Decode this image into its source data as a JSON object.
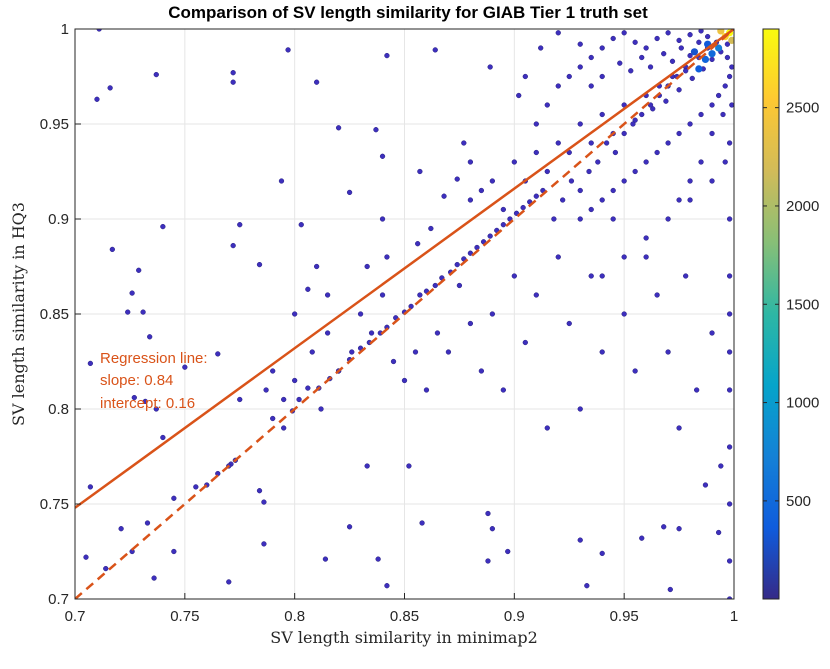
{
  "chart_data": {
    "type": "scatter",
    "title": "Comparison of SV length similarity for GIAB Tier 1 truth set",
    "xlabel": "SV length similarity in minimap2",
    "ylabel": "SV length similarity in HQ3",
    "xlim": [
      0.7,
      1.0
    ],
    "ylim": [
      0.7,
      1.0
    ],
    "x_ticks": [
      0.7,
      0.75,
      0.8,
      0.85,
      0.9,
      0.95,
      1.0
    ],
    "x_tick_labels": [
      "0.7",
      "0.75",
      "0.8",
      "0.85",
      "0.9",
      "0.95",
      "1"
    ],
    "y_ticks": [
      0.7,
      0.75,
      0.8,
      0.85,
      0.9,
      0.95,
      1.0
    ],
    "y_tick_labels": [
      "0.7",
      "0.75",
      "0.8",
      "0.85",
      "0.9",
      "0.95",
      "1"
    ],
    "grid": true,
    "colorbar": {
      "range": [
        1,
        2900
      ],
      "ticks": [
        500,
        1000,
        1500,
        2000,
        2500
      ],
      "tick_labels": [
        "500",
        "1000",
        "1500",
        "2000",
        "2500"
      ],
      "colormap": "parula",
      "colors": [
        "#352a87",
        "#0f5cdd",
        "#1481d6",
        "#06a4ca",
        "#2eb7a4",
        "#87bf77",
        "#d1bb59",
        "#fec832",
        "#f9fb0e"
      ]
    },
    "regression": {
      "slope": 0.84,
      "intercept": 0.16,
      "color": "#d95319",
      "labels": [
        "Regression line:",
        "slope: 0.84",
        "intercept: 0.16"
      ]
    },
    "identity_line": {
      "slope": 1,
      "intercept": 0,
      "style": "dashed",
      "color": "#d95319"
    },
    "point_color": "#3d2fbd",
    "points": [
      [
        0.711,
        1.0
      ],
      [
        0.71,
        0.963
      ],
      [
        0.716,
        0.969
      ],
      [
        0.737,
        0.976
      ],
      [
        0.772,
        0.977
      ],
      [
        0.772,
        0.972
      ],
      [
        0.797,
        0.989
      ],
      [
        0.81,
        0.972
      ],
      [
        0.842,
        0.986
      ],
      [
        0.864,
        0.989
      ],
      [
        0.889,
        0.98
      ],
      [
        0.902,
        0.965
      ],
      [
        0.82,
        0.948
      ],
      [
        0.837,
        0.947
      ],
      [
        0.74,
        0.896
      ],
      [
        0.729,
        0.873
      ],
      [
        0.717,
        0.884
      ],
      [
        0.726,
        0.861
      ],
      [
        0.724,
        0.851
      ],
      [
        0.731,
        0.851
      ],
      [
        0.734,
        0.838
      ],
      [
        0.707,
        0.824
      ],
      [
        0.775,
        0.897
      ],
      [
        0.772,
        0.886
      ],
      [
        0.794,
        0.92
      ],
      [
        0.784,
        0.876
      ],
      [
        0.765,
        0.829
      ],
      [
        0.75,
        0.822
      ],
      [
        0.803,
        0.897
      ],
      [
        0.81,
        0.875
      ],
      [
        0.825,
        0.914
      ],
      [
        0.84,
        0.933
      ],
      [
        0.857,
        0.925
      ],
      [
        0.877,
        0.94
      ],
      [
        0.8,
        0.85
      ],
      [
        0.806,
        0.863
      ],
      [
        0.815,
        0.86
      ],
      [
        0.833,
        0.875
      ],
      [
        0.842,
        0.88
      ],
      [
        0.84,
        0.9
      ],
      [
        0.856,
        0.887
      ],
      [
        0.862,
        0.895
      ],
      [
        0.868,
        0.912
      ],
      [
        0.874,
        0.921
      ],
      [
        0.88,
        0.93
      ],
      [
        0.732,
        0.804
      ],
      [
        0.74,
        0.785
      ],
      [
        0.737,
        0.8
      ],
      [
        0.727,
        0.806
      ],
      [
        0.775,
        0.805
      ],
      [
        0.771,
        0.771
      ],
      [
        0.77,
        0.77
      ],
      [
        0.773,
        0.773
      ],
      [
        0.765,
        0.766
      ],
      [
        0.76,
        0.76
      ],
      [
        0.755,
        0.759
      ],
      [
        0.745,
        0.753
      ],
      [
        0.721,
        0.737
      ],
      [
        0.726,
        0.725
      ],
      [
        0.707,
        0.759
      ],
      [
        0.705,
        0.722
      ],
      [
        0.714,
        0.716
      ],
      [
        0.733,
        0.74
      ],
      [
        0.745,
        0.725
      ],
      [
        0.736,
        0.711
      ],
      [
        0.77,
        0.709
      ],
      [
        0.784,
        0.757
      ],
      [
        0.786,
        0.751
      ],
      [
        0.786,
        0.729
      ],
      [
        0.79,
        0.82
      ],
      [
        0.795,
        0.805
      ],
      [
        0.799,
        0.799
      ],
      [
        0.802,
        0.805
      ],
      [
        0.806,
        0.811
      ],
      [
        0.811,
        0.811
      ],
      [
        0.816,
        0.816
      ],
      [
        0.82,
        0.82
      ],
      [
        0.825,
        0.826
      ],
      [
        0.83,
        0.832
      ],
      [
        0.834,
        0.835
      ],
      [
        0.839,
        0.84
      ],
      [
        0.842,
        0.843
      ],
      [
        0.846,
        0.848
      ],
      [
        0.85,
        0.851
      ],
      [
        0.853,
        0.854
      ],
      [
        0.857,
        0.86
      ],
      [
        0.86,
        0.862
      ],
      [
        0.864,
        0.865
      ],
      [
        0.867,
        0.869
      ],
      [
        0.871,
        0.872
      ],
      [
        0.874,
        0.876
      ],
      [
        0.877,
        0.879
      ],
      [
        0.88,
        0.882
      ],
      [
        0.883,
        0.885
      ],
      [
        0.886,
        0.888
      ],
      [
        0.889,
        0.891
      ],
      [
        0.892,
        0.894
      ],
      [
        0.895,
        0.897
      ],
      [
        0.898,
        0.9
      ],
      [
        0.901,
        0.903
      ],
      [
        0.904,
        0.906
      ],
      [
        0.907,
        0.909
      ],
      [
        0.91,
        0.912
      ],
      [
        0.913,
        0.915
      ],
      [
        0.833,
        0.77
      ],
      [
        0.825,
        0.738
      ],
      [
        0.814,
        0.721
      ],
      [
        0.838,
        0.721
      ],
      [
        0.842,
        0.707
      ],
      [
        0.852,
        0.77
      ],
      [
        0.858,
        0.74
      ],
      [
        0.888,
        0.745
      ],
      [
        0.89,
        0.737
      ],
      [
        0.897,
        0.725
      ],
      [
        0.888,
        0.72
      ],
      [
        0.93,
        0.731
      ],
      [
        0.94,
        0.724
      ],
      [
        0.933,
        0.707
      ],
      [
        0.958,
        0.732
      ],
      [
        0.968,
        0.738
      ],
      [
        0.975,
        0.737
      ],
      [
        0.971,
        0.705
      ],
      [
        0.993,
        0.735
      ],
      [
        0.998,
        0.7
      ],
      [
        0.998,
        0.72
      ],
      [
        0.998,
        0.75
      ],
      [
        0.998,
        0.78
      ],
      [
        0.998,
        0.81
      ],
      [
        0.998,
        0.83
      ],
      [
        0.998,
        0.85
      ],
      [
        0.998,
        0.87
      ],
      [
        0.998,
        0.9
      ],
      [
        0.994,
        0.77
      ],
      [
        0.99,
        0.84
      ],
      [
        0.987,
        0.76
      ],
      [
        0.983,
        0.81
      ],
      [
        0.978,
        0.87
      ],
      [
        0.975,
        0.79
      ],
      [
        0.97,
        0.83
      ],
      [
        0.965,
        0.86
      ],
      [
        0.96,
        0.88
      ],
      [
        0.955,
        0.82
      ],
      [
        0.95,
        0.85
      ],
      [
        0.945,
        0.9
      ],
      [
        0.94,
        0.83
      ],
      [
        0.935,
        0.87
      ],
      [
        0.93,
        0.8
      ],
      [
        0.925,
        0.845
      ],
      [
        0.92,
        0.88
      ],
      [
        0.915,
        0.79
      ],
      [
        0.91,
        0.86
      ],
      [
        0.905,
        0.835
      ],
      [
        0.9,
        0.87
      ],
      [
        0.895,
        0.81
      ],
      [
        0.89,
        0.85
      ],
      [
        0.885,
        0.82
      ],
      [
        0.88,
        0.845
      ],
      [
        0.875,
        0.865
      ],
      [
        0.87,
        0.83
      ],
      [
        0.865,
        0.84
      ],
      [
        0.86,
        0.81
      ],
      [
        0.855,
        0.83
      ],
      [
        0.85,
        0.815
      ],
      [
        0.845,
        0.825
      ],
      [
        0.84,
        0.86
      ],
      [
        0.835,
        0.84
      ],
      [
        0.83,
        0.85
      ],
      [
        0.826,
        0.83
      ],
      [
        0.82,
        0.82
      ],
      [
        0.815,
        0.84
      ],
      [
        0.812,
        0.8
      ],
      [
        0.808,
        0.83
      ],
      [
        0.8,
        0.815
      ],
      [
        0.795,
        0.79
      ],
      [
        0.79,
        0.795
      ],
      [
        0.787,
        0.81
      ],
      [
        0.88,
        0.91
      ],
      [
        0.885,
        0.915
      ],
      [
        0.89,
        0.92
      ],
      [
        0.895,
        0.905
      ],
      [
        0.9,
        0.93
      ],
      [
        0.905,
        0.92
      ],
      [
        0.91,
        0.935
      ],
      [
        0.915,
        0.925
      ],
      [
        0.92,
        0.94
      ],
      [
        0.925,
        0.935
      ],
      [
        0.93,
        0.95
      ],
      [
        0.935,
        0.94
      ],
      [
        0.94,
        0.955
      ],
      [
        0.945,
        0.945
      ],
      [
        0.95,
        0.96
      ],
      [
        0.955,
        0.952
      ],
      [
        0.96,
        0.965
      ],
      [
        0.963,
        0.958
      ],
      [
        0.966,
        0.97
      ],
      [
        0.969,
        0.962
      ],
      [
        0.972,
        0.975
      ],
      [
        0.975,
        0.968
      ],
      [
        0.978,
        0.98
      ],
      [
        0.981,
        0.974
      ],
      [
        0.984,
        0.985
      ],
      [
        0.986,
        0.979
      ],
      [
        0.988,
        0.99
      ],
      [
        0.99,
        0.984
      ],
      [
        0.992,
        0.993
      ],
      [
        0.994,
        0.988
      ],
      [
        0.996,
        0.996
      ],
      [
        0.997,
        0.992
      ],
      [
        0.918,
        0.9
      ],
      [
        0.922,
        0.91
      ],
      [
        0.926,
        0.92
      ],
      [
        0.93,
        0.915
      ],
      [
        0.934,
        0.925
      ],
      [
        0.938,
        0.93
      ],
      [
        0.942,
        0.94
      ],
      [
        0.946,
        0.935
      ],
      [
        0.95,
        0.945
      ],
      [
        0.954,
        0.95
      ],
      [
        0.958,
        0.955
      ],
      [
        0.962,
        0.96
      ],
      [
        0.966,
        0.965
      ],
      [
        0.97,
        0.97
      ],
      [
        0.974,
        0.975
      ],
      [
        0.978,
        0.978
      ],
      [
        0.91,
        0.95
      ],
      [
        0.915,
        0.96
      ],
      [
        0.92,
        0.97
      ],
      [
        0.925,
        0.975
      ],
      [
        0.93,
        0.98
      ],
      [
        0.935,
        0.985
      ],
      [
        0.94,
        0.99
      ],
      [
        0.945,
        0.995
      ],
      [
        0.95,
        0.998
      ],
      [
        0.955,
        0.993
      ],
      [
        0.96,
        0.99
      ],
      [
        0.965,
        0.995
      ],
      [
        0.97,
        0.998
      ],
      [
        0.975,
        0.994
      ],
      [
        0.98,
        0.997
      ],
      [
        0.985,
        0.999
      ],
      [
        0.905,
        0.975
      ],
      [
        0.912,
        0.99
      ],
      [
        0.92,
        0.998
      ],
      [
        0.93,
        0.992
      ],
      [
        0.935,
        0.97
      ],
      [
        0.94,
        0.975
      ],
      [
        0.948,
        0.982
      ],
      [
        0.953,
        0.978
      ],
      [
        0.958,
        0.985
      ],
      [
        0.962,
        0.98
      ],
      [
        0.968,
        0.987
      ],
      [
        0.972,
        0.983
      ],
      [
        0.976,
        0.99
      ],
      [
        0.98,
        0.986
      ],
      [
        0.984,
        0.993
      ],
      [
        0.988,
        0.996
      ],
      [
        0.93,
        0.9
      ],
      [
        0.935,
        0.905
      ],
      [
        0.94,
        0.91
      ],
      [
        0.945,
        0.915
      ],
      [
        0.95,
        0.92
      ],
      [
        0.955,
        0.925
      ],
      [
        0.96,
        0.93
      ],
      [
        0.965,
        0.935
      ],
      [
        0.97,
        0.94
      ],
      [
        0.975,
        0.945
      ],
      [
        0.98,
        0.95
      ],
      [
        0.985,
        0.955
      ],
      [
        0.99,
        0.96
      ],
      [
        0.993,
        0.965
      ],
      [
        0.996,
        0.97
      ],
      [
        0.998,
        0.975
      ],
      [
        0.94,
        0.87
      ],
      [
        0.95,
        0.88
      ],
      [
        0.96,
        0.89
      ],
      [
        0.97,
        0.9
      ],
      [
        0.98,
        0.91
      ],
      [
        0.99,
        0.92
      ],
      [
        0.996,
        0.93
      ],
      [
        0.998,
        0.94
      ],
      [
        0.985,
        0.93
      ],
      [
        0.98,
        0.92
      ],
      [
        0.975,
        0.91
      ],
      [
        0.99,
        0.945
      ],
      [
        0.995,
        0.955
      ],
      [
        0.997,
        0.985
      ],
      [
        0.999,
        0.96
      ],
      [
        0.999,
        0.98
      ]
    ],
    "hot_points": [
      {
        "x": 0.998,
        "y": 0.998,
        "count": 2900
      },
      {
        "x": 0.996,
        "y": 0.996,
        "count": 2600
      },
      {
        "x": 0.994,
        "y": 0.999,
        "count": 2400
      },
      {
        "x": 0.999,
        "y": 0.994,
        "count": 2200
      },
      {
        "x": 0.993,
        "y": 0.99,
        "count": 700
      },
      {
        "x": 0.99,
        "y": 0.987,
        "count": 500
      },
      {
        "x": 0.987,
        "y": 0.984,
        "count": 450
      },
      {
        "x": 0.984,
        "y": 0.979,
        "count": 380
      },
      {
        "x": 0.988,
        "y": 0.992,
        "count": 350
      },
      {
        "x": 0.982,
        "y": 0.988,
        "count": 300
      }
    ]
  }
}
